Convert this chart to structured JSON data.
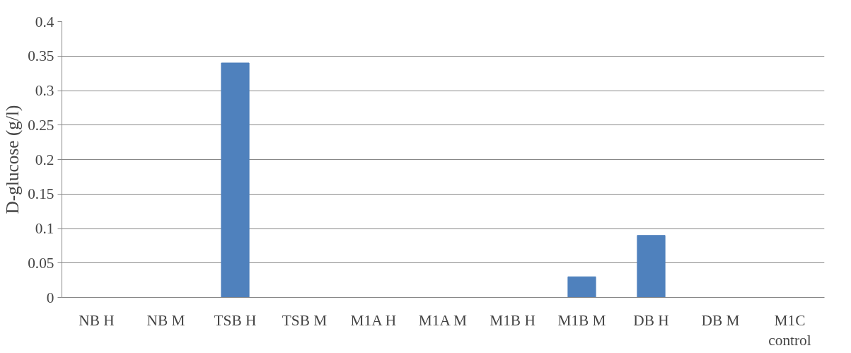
{
  "chart_data": {
    "type": "bar",
    "ylabel": "D-glucose (g/l)",
    "categories": [
      "NB H",
      "NB M",
      "TSB H",
      "TSB M",
      "M1A H",
      "M1A M",
      "M1B H",
      "M1B M",
      "DB H",
      "DB M",
      "M1C control"
    ],
    "values": [
      0,
      0,
      0.34,
      0,
      0,
      0,
      0,
      0.03,
      0.09,
      0,
      0
    ],
    "color": "#4f81bd",
    "ylim": [
      0,
      0.4
    ],
    "yticks": [
      0,
      0.05,
      0.1,
      0.15,
      0.2,
      0.25,
      0.3,
      0.35,
      0.4
    ],
    "grid": "y"
  }
}
